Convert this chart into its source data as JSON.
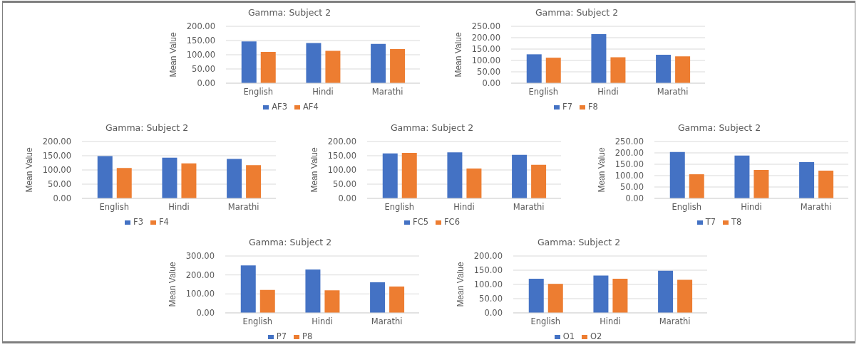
{
  "chart_data": [
    {
      "type": "bar",
      "title": "Gamma: Subject 2",
      "ylabel": "Mean Value",
      "categories": [
        "English",
        "Hindi",
        "Marathi"
      ],
      "series": [
        {
          "name": "AF3",
          "color": "#4472c4",
          "values": [
            147,
            141,
            138
          ]
        },
        {
          "name": "AF4",
          "color": "#ed7d31",
          "values": [
            110,
            114,
            120
          ]
        }
      ],
      "ylim": [
        0,
        200
      ],
      "yticks": [
        {
          "value": 0,
          "label": "0.00"
        },
        {
          "value": 50,
          "label": "50.00"
        },
        {
          "value": 100,
          "label": "100.00"
        },
        {
          "value": 150,
          "label": "150.00"
        },
        {
          "value": 200,
          "label": "200.00"
        }
      ],
      "grid": "y",
      "legend": "bottom"
    },
    {
      "type": "bar",
      "title": "Gamma: Subject 2",
      "ylabel": "Mean Value",
      "categories": [
        "English",
        "Hindi",
        "Marathi"
      ],
      "series": [
        {
          "name": "F7",
          "color": "#4472c4",
          "values": [
            127,
            216,
            125
          ]
        },
        {
          "name": "F8",
          "color": "#ed7d31",
          "values": [
            112,
            114,
            118
          ]
        }
      ],
      "ylim": [
        0,
        250
      ],
      "yticks": [
        {
          "value": 0,
          "label": "0.00"
        },
        {
          "value": 50,
          "label": "50.00"
        },
        {
          "value": 100,
          "label": "100.00"
        },
        {
          "value": 150,
          "label": "150.00"
        },
        {
          "value": 200,
          "label": "200.00"
        },
        {
          "value": 250,
          "label": "250.00"
        }
      ],
      "grid": "y",
      "legend": "bottom"
    },
    {
      "type": "bar",
      "title": "Gamma: Subject 2",
      "ylabel": "Mean Value",
      "categories": [
        "English",
        "Hindi",
        "Marathi"
      ],
      "series": [
        {
          "name": "F3",
          "color": "#4472c4",
          "values": [
            149,
            143,
            139
          ]
        },
        {
          "name": "F4",
          "color": "#ed7d31",
          "values": [
            107,
            123,
            117
          ]
        }
      ],
      "ylim": [
        0,
        200
      ],
      "yticks": [
        {
          "value": 0,
          "label": "0.00"
        },
        {
          "value": 50,
          "label": "50.00"
        },
        {
          "value": 100,
          "label": "100.00"
        },
        {
          "value": 150,
          "label": "150.00"
        },
        {
          "value": 200,
          "label": "200.00"
        }
      ],
      "grid": "y",
      "legend": "bottom"
    },
    {
      "type": "bar",
      "title": "Gamma: Subject 2",
      "ylabel": "Mean Value",
      "categories": [
        "English",
        "Hindi",
        "Marathi"
      ],
      "series": [
        {
          "name": "FC5",
          "color": "#4472c4",
          "values": [
            158,
            162,
            153
          ]
        },
        {
          "name": "FC6",
          "color": "#ed7d31",
          "values": [
            160,
            105,
            118
          ]
        }
      ],
      "ylim": [
        0,
        200
      ],
      "yticks": [
        {
          "value": 0,
          "label": "0.00"
        },
        {
          "value": 50,
          "label": "50.00"
        },
        {
          "value": 100,
          "label": "100.00"
        },
        {
          "value": 150,
          "label": "150.00"
        },
        {
          "value": 200,
          "label": "200.00"
        }
      ],
      "grid": "y",
      "legend": "bottom"
    },
    {
      "type": "bar",
      "title": "Gamma: Subject 2",
      "ylabel": "Mean Value",
      "categories": [
        "English",
        "Hindi",
        "Marathi"
      ],
      "series": [
        {
          "name": "T7",
          "color": "#4472c4",
          "values": [
            204,
            188,
            159
          ]
        },
        {
          "name": "T8",
          "color": "#ed7d31",
          "values": [
            106,
            125,
            122
          ]
        }
      ],
      "ylim": [
        0,
        250
      ],
      "yticks": [
        {
          "value": 0,
          "label": "0.00"
        },
        {
          "value": 50,
          "label": "50.00"
        },
        {
          "value": 100,
          "label": "100.00"
        },
        {
          "value": 150,
          "label": "150.00"
        },
        {
          "value": 200,
          "label": "200.00"
        },
        {
          "value": 250,
          "label": "250.00"
        }
      ],
      "grid": "y",
      "legend": "bottom"
    },
    {
      "type": "bar",
      "title": "Gamma: Subject 2",
      "ylabel": "Mean Value",
      "categories": [
        "English",
        "Hindi",
        "Marathi"
      ],
      "series": [
        {
          "name": "P7",
          "color": "#4472c4",
          "values": [
            250,
            229,
            161
          ]
        },
        {
          "name": "P8",
          "color": "#ed7d31",
          "values": [
            121,
            119,
            139
          ]
        }
      ],
      "ylim": [
        0,
        300
      ],
      "yticks": [
        {
          "value": 0,
          "label": "0.00"
        },
        {
          "value": 100,
          "label": "100.00"
        },
        {
          "value": 200,
          "label": "200.00"
        },
        {
          "value": 300,
          "label": "300.00"
        }
      ],
      "grid": "y",
      "legend": "bottom"
    },
    {
      "type": "bar",
      "title": "Gamma: Subject 2",
      "ylabel": "Mean Value",
      "categories": [
        "English",
        "Hindi",
        "Marathi"
      ],
      "series": [
        {
          "name": "O1",
          "color": "#4472c4",
          "values": [
            120,
            131,
            148
          ]
        },
        {
          "name": "O2",
          "color": "#ed7d31",
          "values": [
            102,
            120,
            116
          ]
        }
      ],
      "ylim": [
        0,
        200
      ],
      "yticks": [
        {
          "value": 0,
          "label": "0.00"
        },
        {
          "value": 50,
          "label": "50.00"
        },
        {
          "value": 100,
          "label": "100.00"
        },
        {
          "value": 150,
          "label": "150.00"
        },
        {
          "value": 200,
          "label": "200.00"
        }
      ],
      "grid": "y",
      "legend": "bottom"
    }
  ]
}
